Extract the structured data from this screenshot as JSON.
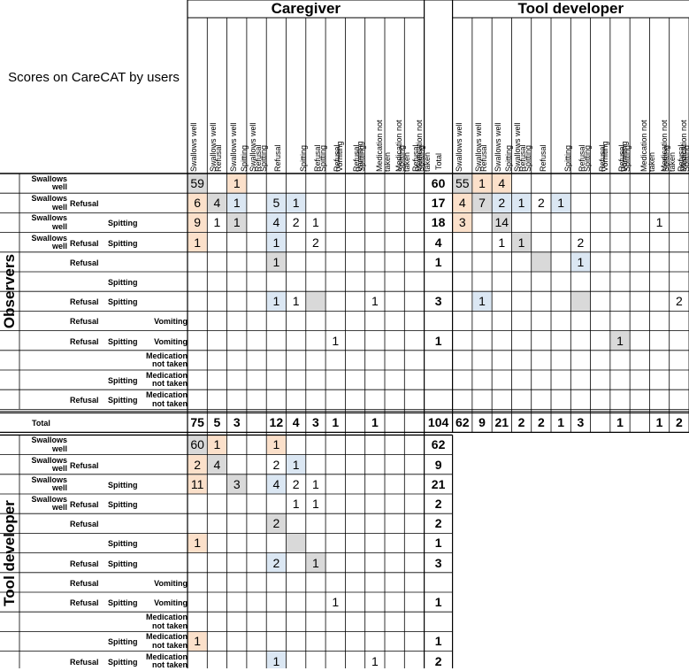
{
  "title_corner": "Scores on CareCAT by users",
  "groups": {
    "caregiver": "Caregiver",
    "tool_developer": "Tool developer",
    "observers": "Observers",
    "tool_developer_rows": "Tool developer"
  },
  "total_label": "Total",
  "column_headers": [
    [
      "Swallows well",
      "",
      ""
    ],
    [
      "Swallows well",
      "Refusal",
      ""
    ],
    [
      "Swallows well",
      "",
      "Spitting"
    ],
    [
      "Swallows well",
      "Refusal",
      "Spitting"
    ],
    [
      "",
      "Refusal",
      ""
    ],
    [
      "",
      "",
      "Spitting"
    ],
    [
      "",
      "Refusal",
      "Spitting"
    ],
    [
      "",
      "Refusal",
      "",
      "Vomiting"
    ],
    [
      "",
      "Refusal",
      "Spitting",
      "Vomiting"
    ],
    [
      "",
      "",
      "",
      "Medication not taken"
    ],
    [
      "",
      "",
      "Spitting",
      "Medication not taken"
    ],
    [
      "",
      "Refusal",
      "Spitting",
      "Medication not taken"
    ]
  ],
  "row_headers": [
    [
      "Swallows well",
      "",
      "",
      ""
    ],
    [
      "Swallows well",
      "Refusal",
      "",
      ""
    ],
    [
      "Swallows well",
      "",
      "Spitting",
      ""
    ],
    [
      "Swallows well",
      "Refusal",
      "Spitting",
      ""
    ],
    [
      "",
      "Refusal",
      "",
      ""
    ],
    [
      "",
      "",
      "Spitting",
      ""
    ],
    [
      "",
      "Refusal",
      "Spitting",
      ""
    ],
    [
      "",
      "Refusal",
      "",
      "Vomiting"
    ],
    [
      "",
      "Refusal",
      "Spitting",
      "Vomiting"
    ],
    [
      "",
      "",
      "",
      "Medication not taken"
    ],
    [
      "",
      "",
      "Spitting",
      "Medication not taken"
    ],
    [
      "",
      "Refusal",
      "Spitting",
      "Medication not taken"
    ]
  ],
  "observers_vs_caregiver": [
    [
      "59",
      "",
      "1",
      "",
      "",
      "",
      "",
      "",
      "",
      "",
      "",
      ""
    ],
    [
      "6",
      "4",
      "1",
      "",
      "5",
      "1",
      "",
      "",
      "",
      "",
      "",
      ""
    ],
    [
      "9",
      "1",
      "1",
      "",
      "4",
      "2",
      "1",
      "",
      "",
      "",
      "",
      ""
    ],
    [
      "1",
      "",
      "",
      "",
      "1",
      "",
      "2",
      "",
      "",
      "",
      "",
      ""
    ],
    [
      "",
      "",
      "",
      "",
      "1",
      "",
      "",
      "",
      "",
      "",
      "",
      ""
    ],
    [
      "",
      "",
      "",
      "",
      "",
      "",
      "",
      "",
      "",
      "",
      "",
      ""
    ],
    [
      "",
      "",
      "",
      "",
      "1",
      "1",
      "",
      "",
      "",
      "1",
      "",
      ""
    ],
    [
      "",
      "",
      "",
      "",
      "",
      "",
      "",
      "",
      "",
      "",
      "",
      ""
    ],
    [
      "",
      "",
      "",
      "",
      "",
      "",
      "",
      "1",
      "",
      "",
      "",
      ""
    ],
    [
      "",
      "",
      "",
      "",
      "",
      "",
      "",
      "",
      "",
      "",
      "",
      ""
    ],
    [
      "",
      "",
      "",
      "",
      "",
      "",
      "",
      "",
      "",
      "",
      "",
      ""
    ],
    [
      "",
      "",
      "",
      "",
      "",
      "",
      "",
      "",
      "",
      "",
      "",
      ""
    ]
  ],
  "observers_total": [
    "60",
    "17",
    "18",
    "4",
    "1",
    "",
    "3",
    "",
    "1",
    "",
    "",
    ""
  ],
  "observers_vs_tooldev": [
    [
      "55",
      "1",
      "4",
      "",
      "",
      "",
      "",
      "",
      "",
      "",
      "",
      ""
    ],
    [
      "4",
      "7",
      "2",
      "1",
      "2",
      "1",
      "",
      "",
      "",
      "",
      "",
      ""
    ],
    [
      "3",
      "",
      "14",
      "",
      "",
      "",
      "",
      "",
      "",
      "",
      "1",
      ""
    ],
    [
      "",
      "",
      "1",
      "1",
      "",
      "",
      "2",
      "",
      "",
      "",
      "",
      ""
    ],
    [
      "",
      "",
      "",
      "",
      "",
      "",
      "1",
      "",
      "",
      "",
      "",
      ""
    ],
    [
      "",
      "",
      "",
      "",
      "",
      "",
      "",
      "",
      "",
      "",
      "",
      ""
    ],
    [
      "",
      "1",
      "",
      "",
      "",
      "",
      "",
      "",
      "",
      "",
      "",
      "2"
    ],
    [
      "",
      "",
      "",
      "",
      "",
      "",
      "",
      "",
      "",
      "",
      "",
      ""
    ],
    [
      "",
      "",
      "",
      "",
      "",
      "",
      "",
      "",
      "1",
      "",
      "",
      ""
    ],
    [
      "",
      "",
      "",
      "",
      "",
      "",
      "",
      "",
      "",
      "",
      "",
      ""
    ],
    [
      "",
      "",
      "",
      "",
      "",
      "",
      "",
      "",
      "",
      "",
      "",
      ""
    ],
    [
      "",
      "",
      "",
      "",
      "",
      "",
      "",
      "",
      "",
      "",
      "",
      ""
    ]
  ],
  "caregiver_totals": [
    "75",
    "5",
    "3",
    "",
    "12",
    "4",
    "3",
    "1",
    "",
    "1",
    "",
    ""
  ],
  "grand_total": "104",
  "tooldev_col_totals": [
    "62",
    "9",
    "21",
    "2",
    "2",
    "1",
    "3",
    "",
    "1",
    "",
    "1",
    "2"
  ],
  "tooldev_vs_caregiver": [
    [
      "60",
      "1",
      "",
      "",
      "1",
      "",
      "",
      "",
      "",
      "",
      "",
      ""
    ],
    [
      "2",
      "4",
      "",
      "",
      "2",
      "1",
      "",
      "",
      "",
      "",
      "",
      ""
    ],
    [
      "11",
      "",
      "3",
      "",
      "4",
      "2",
      "1",
      "",
      "",
      "",
      "",
      ""
    ],
    [
      "",
      "",
      "",
      "",
      "",
      "1",
      "1",
      "",
      "",
      "",
      "",
      ""
    ],
    [
      "",
      "",
      "",
      "",
      "2",
      "",
      "",
      "",
      "",
      "",
      "",
      ""
    ],
    [
      "1",
      "",
      "",
      "",
      "",
      "",
      "",
      "",
      "",
      "",
      "",
      ""
    ],
    [
      "",
      "",
      "",
      "",
      "2",
      "",
      "1",
      "",
      "",
      "",
      "",
      ""
    ],
    [
      "",
      "",
      "",
      "",
      "",
      "",
      "",
      "",
      "",
      "",
      "",
      ""
    ],
    [
      "",
      "",
      "",
      "",
      "",
      "",
      "",
      "1",
      "",
      "",
      "",
      ""
    ],
    [
      "",
      "",
      "",
      "",
      "",
      "",
      "",
      "",
      "",
      "",
      "",
      ""
    ],
    [
      "1",
      "",
      "",
      "",
      "",
      "",
      "",
      "",
      "",
      "",
      "",
      ""
    ],
    [
      "",
      "",
      "",
      "",
      "1",
      "",
      "",
      "",
      "",
      "1",
      "",
      ""
    ]
  ],
  "tooldev_row_totals": [
    "62",
    "9",
    "21",
    "2",
    "2",
    "1",
    "3",
    "",
    "1",
    "",
    "1",
    "2"
  ],
  "colors": {
    "orange": "#fbe0ca",
    "blue": "#dbe7f3",
    "gray": "#d9d9d9",
    "line": "#000000"
  },
  "shading": {
    "obs_cg": [
      [
        0,
        0,
        "gray"
      ],
      [
        0,
        2,
        "orange"
      ],
      [
        1,
        0,
        "orange"
      ],
      [
        1,
        1,
        "gray"
      ],
      [
        1,
        2,
        "blue"
      ],
      [
        1,
        4,
        "blue"
      ],
      [
        1,
        5,
        "blue"
      ],
      [
        2,
        0,
        "orange"
      ],
      [
        2,
        2,
        "gray"
      ],
      [
        2,
        4,
        "blue"
      ],
      [
        3,
        0,
        "orange"
      ],
      [
        3,
        4,
        "blue"
      ],
      [
        4,
        4,
        "gray"
      ],
      [
        6,
        4,
        "blue"
      ],
      [
        6,
        6,
        "gray"
      ]
    ],
    "obs_td": [
      [
        0,
        0,
        "gray"
      ],
      [
        0,
        1,
        "orange"
      ],
      [
        0,
        2,
        "orange"
      ],
      [
        1,
        0,
        "orange"
      ],
      [
        1,
        1,
        "gray"
      ],
      [
        1,
        2,
        "blue"
      ],
      [
        1,
        3,
        "blue"
      ],
      [
        1,
        5,
        "blue"
      ],
      [
        2,
        0,
        "orange"
      ],
      [
        2,
        2,
        "gray"
      ],
      [
        3,
        3,
        "gray"
      ],
      [
        4,
        4,
        "gray"
      ],
      [
        4,
        6,
        "blue"
      ],
      [
        6,
        1,
        "blue"
      ],
      [
        6,
        6,
        "gray"
      ],
      [
        8,
        8,
        "gray"
      ]
    ],
    "td_cg": [
      [
        0,
        0,
        "gray"
      ],
      [
        0,
        1,
        "orange"
      ],
      [
        0,
        4,
        "orange"
      ],
      [
        1,
        0,
        "orange"
      ],
      [
        1,
        1,
        "gray"
      ],
      [
        1,
        5,
        "blue"
      ],
      [
        2,
        0,
        "orange"
      ],
      [
        2,
        2,
        "gray"
      ],
      [
        2,
        4,
        "blue"
      ],
      [
        4,
        4,
        "gray"
      ],
      [
        5,
        0,
        "orange"
      ],
      [
        5,
        5,
        "gray"
      ],
      [
        6,
        4,
        "blue"
      ],
      [
        6,
        6,
        "gray"
      ],
      [
        10,
        0,
        "orange"
      ],
      [
        11,
        4,
        "blue"
      ]
    ]
  }
}
